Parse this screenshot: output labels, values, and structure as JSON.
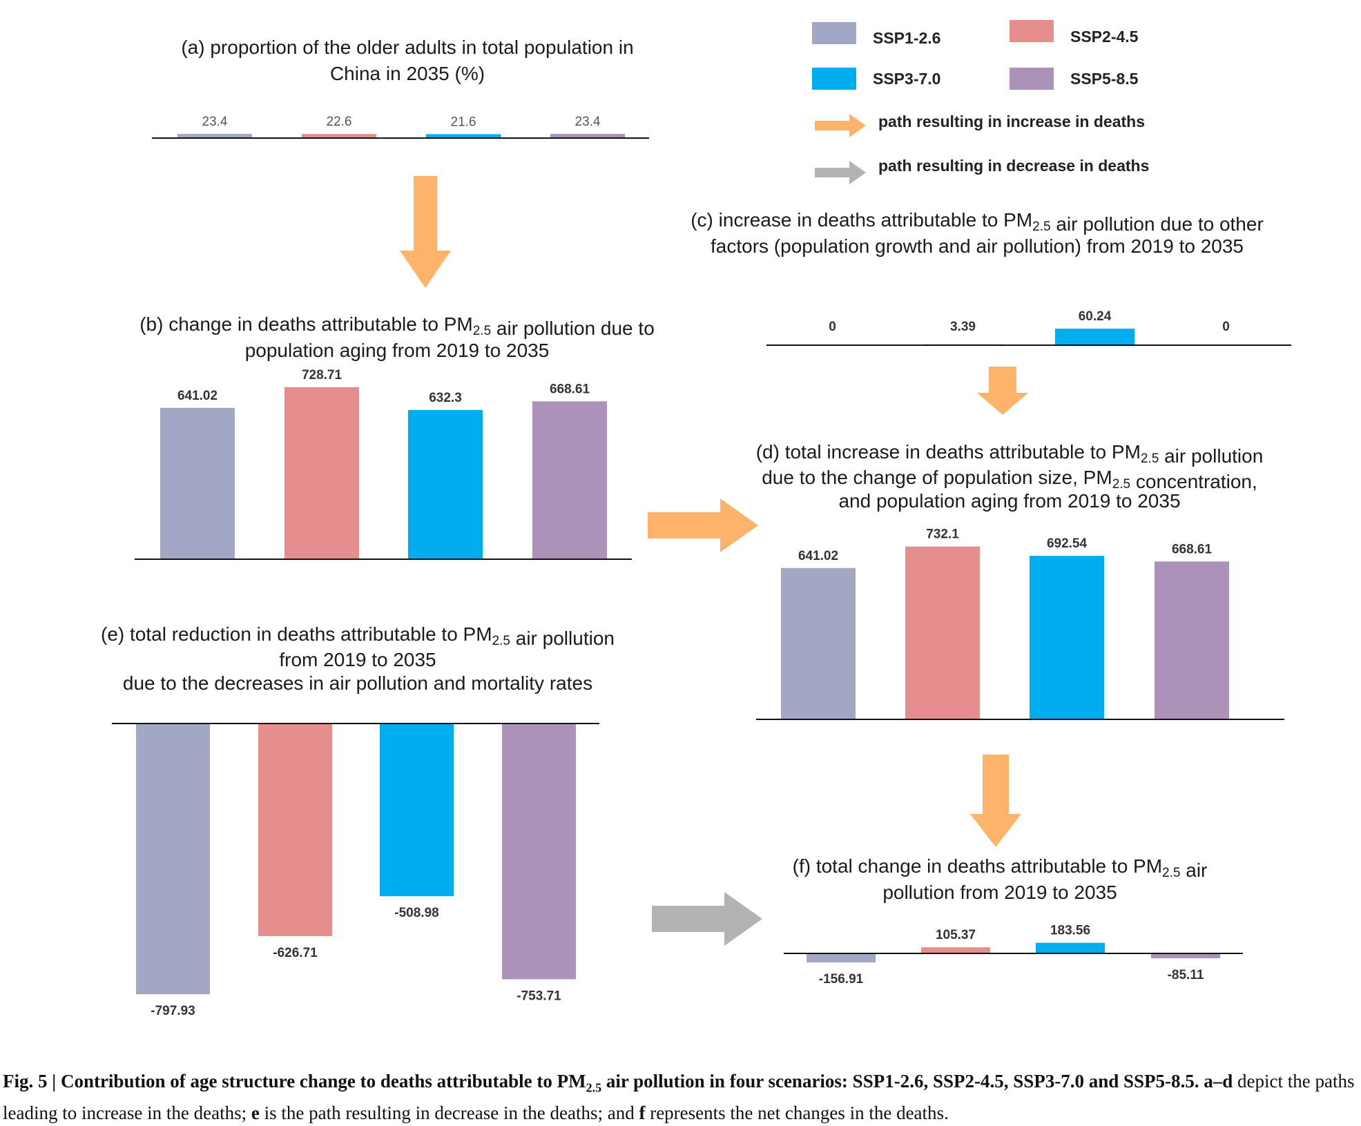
{
  "colors": {
    "SSP1-2.6": "#a3a7c6",
    "SSP2-4.5": "#e68d8d",
    "SSP3-7.0": "#00aeef",
    "SSP5-8.5": "#ac91b8",
    "increase_arrow": "#fdb46a",
    "decrease_arrow": "#b3b3b3"
  },
  "legend": {
    "items": [
      {
        "label": "SSP1-2.6",
        "color_key": "SSP1-2.6"
      },
      {
        "label": "SSP2-4.5",
        "color_key": "SSP2-4.5"
      },
      {
        "label": "SSP3-7.0",
        "color_key": "SSP3-7.0"
      },
      {
        "label": "SSP5-8.5",
        "color_key": "SSP5-8.5"
      }
    ],
    "increase_label": "path resulting in increase in deaths",
    "decrease_label": "path resulting in decrease in deaths"
  },
  "chart_data": [
    {
      "id": "a",
      "type": "bar",
      "title_lines": [
        "(a) proportion of the older adults in total population in",
        "China in 2035 (%)"
      ],
      "categories": [
        "SSP1-2.6",
        "SSP2-4.5",
        "SSP3-7.0",
        "SSP5-8.5"
      ],
      "values": [
        23.4,
        22.6,
        21.6,
        23.4
      ],
      "labels": [
        "23.4",
        "22.6",
        "21.6",
        "23.4"
      ]
    },
    {
      "id": "b",
      "type": "bar",
      "title_lines": [
        [
          {
            "t": "(b) change in deaths attributable to PM"
          },
          {
            "t": "2.5",
            "sub": true
          },
          {
            "t": " air pollution due to"
          }
        ],
        [
          {
            "t": "population aging from 2019 to 2035"
          }
        ]
      ],
      "categories": [
        "SSP1-2.6",
        "SSP2-4.5",
        "SSP3-7.0",
        "SSP5-8.5"
      ],
      "values": [
        641.02,
        728.71,
        632.3,
        668.61
      ],
      "labels": [
        "641.02",
        "728.71",
        "632.3",
        "668.61"
      ]
    },
    {
      "id": "c",
      "type": "bar",
      "title_lines": [
        [
          {
            "t": "(c) increase in deaths attributable to PM"
          },
          {
            "t": "2.5",
            "sub": true
          },
          {
            "t": " air pollution due to other"
          }
        ],
        [
          {
            "t": "factors (population growth and air pollution) from 2019 to 2035"
          }
        ]
      ],
      "categories": [
        "SSP1-2.6",
        "SSP2-4.5",
        "SSP3-7.0",
        "SSP5-8.5"
      ],
      "values": [
        0,
        3.39,
        60.24,
        0
      ],
      "labels": [
        "0",
        "3.39",
        "60.24",
        "0"
      ]
    },
    {
      "id": "d",
      "type": "bar",
      "title_lines": [
        [
          {
            "t": "(d) total increase in deaths attributable to PM"
          },
          {
            "t": "2.5",
            "sub": true
          },
          {
            "t": " air pollution"
          }
        ],
        [
          {
            "t": "due to the change of  population size, PM"
          },
          {
            "t": "2.5",
            "sub": true
          },
          {
            "t": " concentration,"
          }
        ],
        [
          {
            "t": "and population aging from 2019 to 2035"
          }
        ]
      ],
      "categories": [
        "SSP1-2.6",
        "SSP2-4.5",
        "SSP3-7.0",
        "SSP5-8.5"
      ],
      "values": [
        641.02,
        732.1,
        692.54,
        668.61
      ],
      "labels": [
        "641.02",
        "732.1",
        "692.54",
        "668.61"
      ]
    },
    {
      "id": "e",
      "type": "bar",
      "title_lines": [
        [
          {
            "t": "(e) total reduction in deaths attributable to PM"
          },
          {
            "t": "2.5",
            "sub": true
          },
          {
            "t": " air pollution"
          }
        ],
        [
          {
            "t": "from 2019 to 2035"
          }
        ],
        [
          {
            "t": "due to the decreases in air pollution and mortality rates"
          }
        ]
      ],
      "categories": [
        "SSP1-2.6",
        "SSP2-4.5",
        "SSP3-7.0",
        "SSP5-8.5"
      ],
      "values": [
        -797.93,
        -626.71,
        -508.98,
        -753.71
      ],
      "labels": [
        "-797.93",
        "-626.71",
        "-508.98",
        "-753.71"
      ]
    },
    {
      "id": "f",
      "type": "bar",
      "title_lines": [
        [
          {
            "t": "(f) total change in deaths attributable to PM"
          },
          {
            "t": "2.5",
            "sub": true
          },
          {
            "t": " air"
          }
        ],
        [
          {
            "t": "pollution from 2019 to 2035"
          }
        ]
      ],
      "categories": [
        "SSP1-2.6",
        "SSP2-4.5",
        "SSP3-7.0",
        "SSP5-8.5"
      ],
      "values": [
        -156.91,
        105.37,
        183.56,
        -85.11
      ],
      "labels": [
        "-156.91",
        "105.37",
        "183.56",
        "-85.11"
      ]
    }
  ],
  "caption": {
    "bold_prefix": "Fig. 5 | Contribution of age structure change to deaths attributable to PM",
    "bold_sub": "2.5",
    "bold_rest": " air pollution in four scenarios:  SSP1-2.6, SSP2-4.5, SSP3-7.0 and SSP5-8.5. a–d",
    "text1": " depict the paths leading to increase in the deaths; ",
    "e_letter": "e",
    "text2": " is the path resulting in decrease in the deaths; and ",
    "f_letter": "f",
    "text3": " represents the net changes in the deaths."
  }
}
